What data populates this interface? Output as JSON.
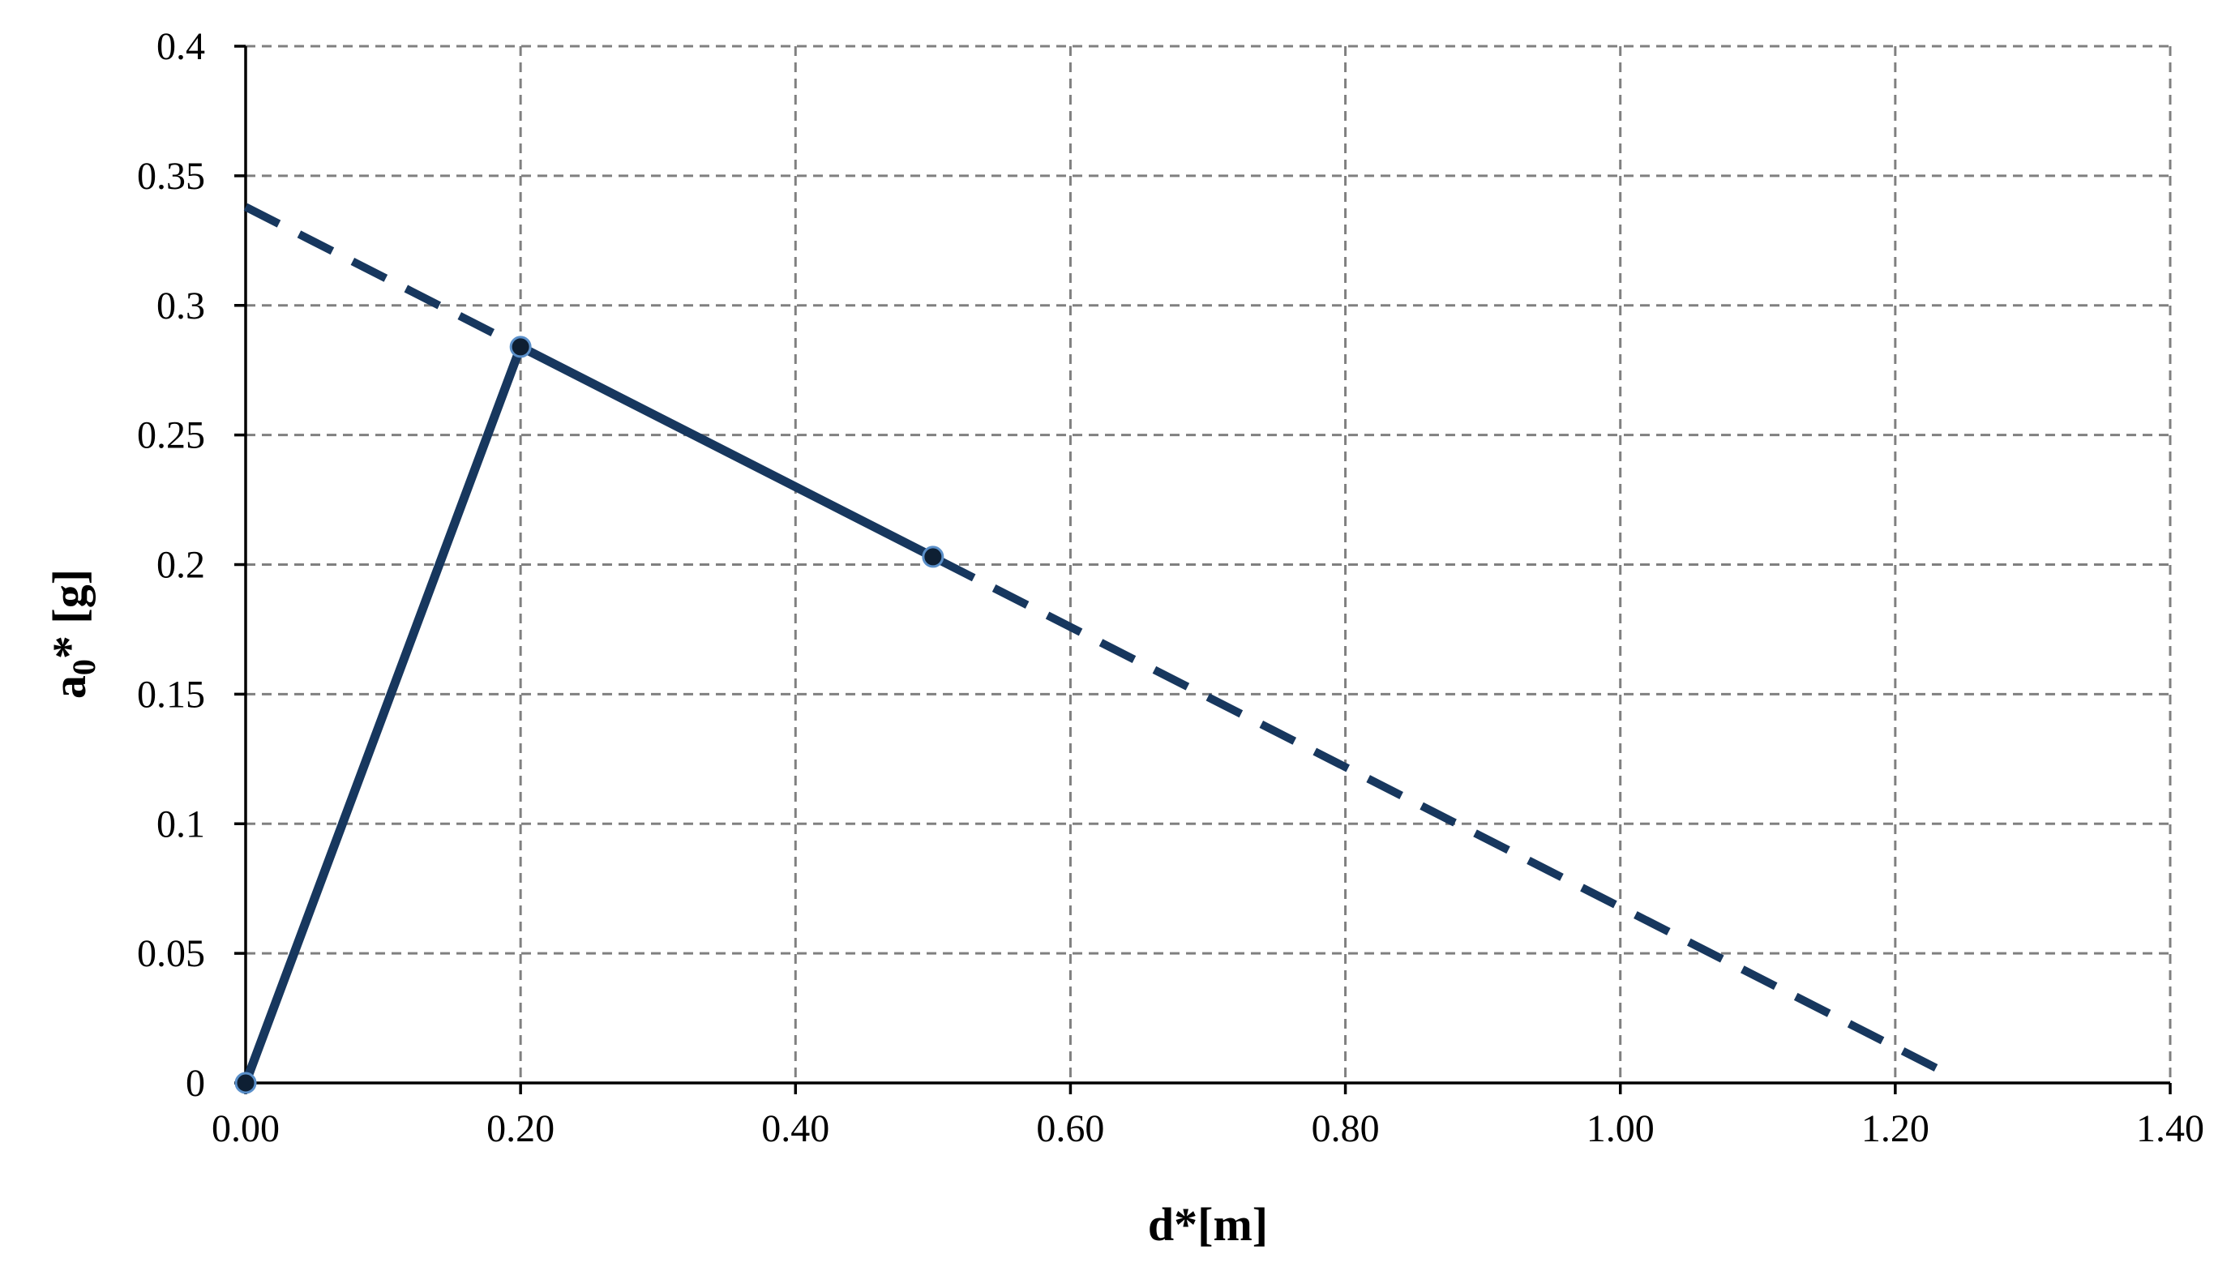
{
  "chart_data": {
    "type": "line",
    "title": "",
    "xlabel": "d*[m]",
    "ylabel_main": "a",
    "ylabel_sub": "0",
    "ylabel_rest": "* [g]",
    "xlim": [
      0,
      1.4
    ],
    "ylim": [
      0,
      0.4
    ],
    "x_ticks": [
      "0.00",
      "0.20",
      "0.40",
      "0.60",
      "0.80",
      "1.00",
      "1.20",
      "1.40"
    ],
    "x_tick_values": [
      0,
      0.2,
      0.4,
      0.6,
      0.8,
      1.0,
      1.2,
      1.4
    ],
    "y_ticks": [
      "0",
      "0.05",
      "0.1",
      "0.15",
      "0.2",
      "0.25",
      "0.3",
      "0.35",
      "0.4"
    ],
    "y_tick_values": [
      0,
      0.05,
      0.1,
      0.15,
      0.2,
      0.25,
      0.3,
      0.35,
      0.4
    ],
    "grid": true,
    "series": [
      {
        "style": "solid",
        "markers": true,
        "color": "#17375e",
        "x": [
          0,
          0.2,
          0.5
        ],
        "y": [
          0,
          0.284,
          0.203
        ]
      },
      {
        "style": "dashed",
        "markers": false,
        "color": "#17375e",
        "x": [
          0,
          1.24
        ],
        "y": [
          0.338,
          0.003
        ]
      }
    ]
  }
}
